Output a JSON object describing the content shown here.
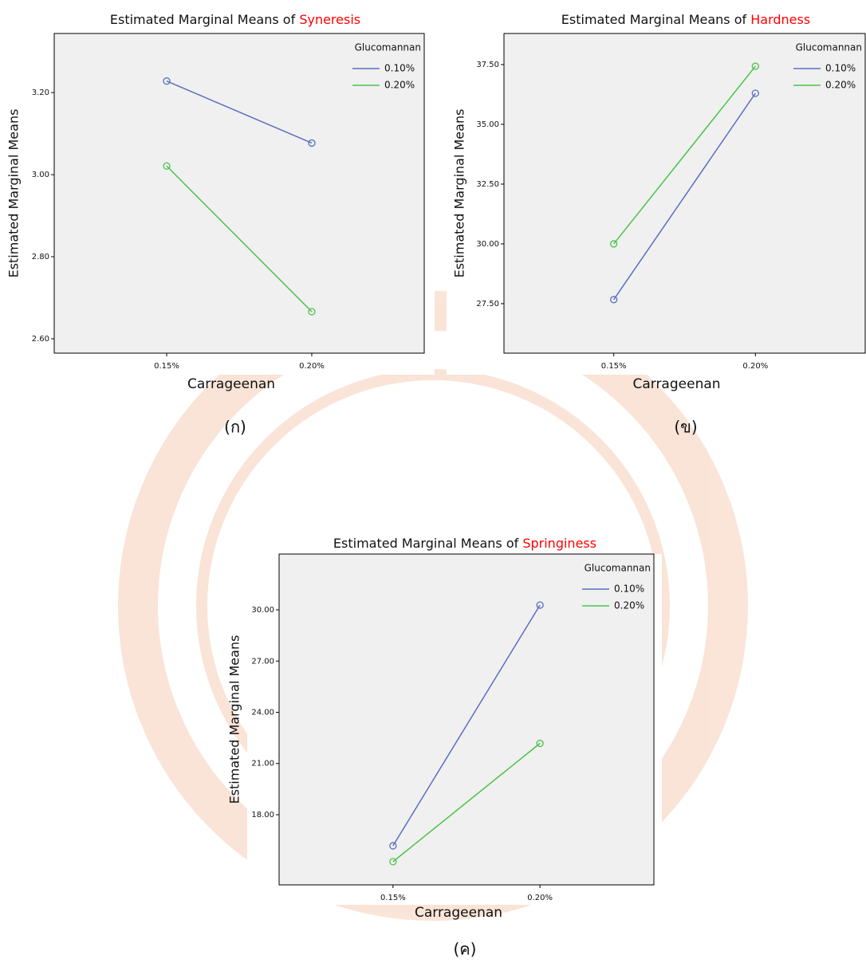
{
  "chart_data": [
    {
      "type": "line",
      "title": "Estimated Marginal Means of",
      "title_variable": "Syneresis",
      "title_variable_color": "#ff0000",
      "x_label": "Carrageenan",
      "y_label": "Estimated Marginal Means",
      "caption": "(ก)",
      "legend_title": "Glucomannan",
      "categories": [
        "0.15%",
        "0.20%"
      ],
      "series": [
        {
          "name": "0.10%",
          "color": "#5b6fc0",
          "values": [
            3.228,
            3.077
          ]
        },
        {
          "name": "0.20%",
          "color": "#4cc24c",
          "values": [
            3.021,
            2.666
          ]
        }
      ],
      "ylim": [
        2.565,
        3.344
      ],
      "yticks": [
        {
          "value": 2.6,
          "label": "2.60"
        },
        {
          "value": 2.8,
          "label": "2.80"
        },
        {
          "value": 3.0,
          "label": "3.00"
        },
        {
          "value": 3.2,
          "label": "3.20"
        }
      ]
    },
    {
      "type": "line",
      "title": "Estimated Marginal Means of",
      "title_variable": "Hardness",
      "title_variable_color": "#ff0000",
      "x_label": "Carrageenan",
      "y_label": "Estimated Marginal Means",
      "caption": "(ข)",
      "legend_title": "Glucomannan",
      "categories": [
        "0.15%",
        "0.20%"
      ],
      "series": [
        {
          "name": "0.10%",
          "color": "#5b6fc0",
          "values": [
            27.67,
            36.3
          ]
        },
        {
          "name": "0.20%",
          "color": "#4cc24c",
          "values": [
            30.0,
            37.43
          ]
        }
      ],
      "ylim": [
        25.43,
        38.8
      ],
      "yticks": [
        {
          "value": 27.5,
          "label": "27.50"
        },
        {
          "value": 30,
          "label": "30.00"
        },
        {
          "value": 32.5,
          "label": "32.50"
        },
        {
          "value": 35,
          "label": "35.00"
        },
        {
          "value": 37.5,
          "label": "37.50"
        }
      ]
    },
    {
      "type": "line",
      "title": "Estimated Marginal Means of",
      "title_variable": "Springiness",
      "title_variable_color": "#ff0000",
      "x_label": "Carrageenan",
      "y_label": "Estimated Marginal Means",
      "caption": "(ค)",
      "legend_title": "Glucomannan",
      "categories": [
        "0.15%",
        "0.20%"
      ],
      "series": [
        {
          "name": "0.10%",
          "color": "#5b6fc0",
          "values": [
            16.18,
            30.28
          ]
        },
        {
          "name": "0.20%",
          "color": "#4cc24c",
          "values": [
            15.25,
            22.18
          ]
        }
      ],
      "ylim": [
        13.89,
        33.27
      ],
      "yticks": [
        {
          "value": 18,
          "label": "18.00"
        },
        {
          "value": 21,
          "label": "21.00"
        },
        {
          "value": 24,
          "label": "24.00"
        },
        {
          "value": 27,
          "label": "27.00"
        },
        {
          "value": 30,
          "label": "30.00"
        }
      ]
    }
  ]
}
